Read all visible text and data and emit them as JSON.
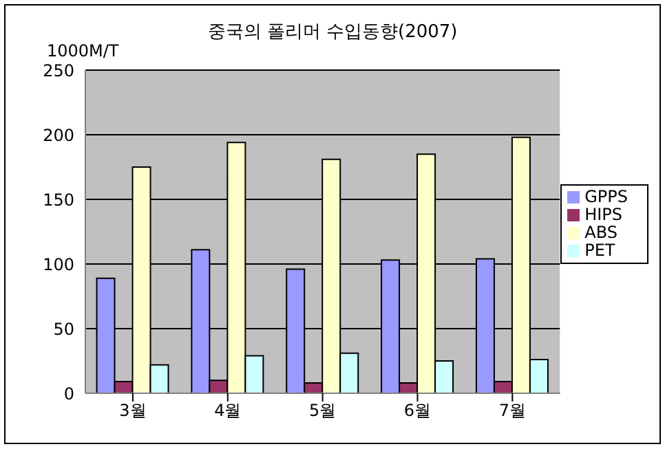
{
  "chart_data": {
    "type": "bar",
    "title": "중국의 폴리머 수입동향(2007)",
    "ylabel": "1000M/T",
    "categories": [
      "3월",
      "4월",
      "5월",
      "6월",
      "7월"
    ],
    "series": [
      {
        "name": "GPPS",
        "color": "#9999ff",
        "values": [
          89,
          111,
          96,
          103,
          104
        ]
      },
      {
        "name": "HIPS",
        "color": "#993366",
        "values": [
          9,
          10,
          8,
          8,
          9
        ]
      },
      {
        "name": "ABS",
        "color": "#ffffcc",
        "values": [
          175,
          194,
          181,
          185,
          198
        ]
      },
      {
        "name": "PET",
        "color": "#ccffff",
        "values": [
          22,
          29,
          31,
          25,
          26
        ]
      }
    ],
    "ylim": [
      0,
      250
    ],
    "yticks": [
      0,
      50,
      100,
      150,
      200,
      250
    ],
    "grid": "y",
    "legend": "right"
  }
}
